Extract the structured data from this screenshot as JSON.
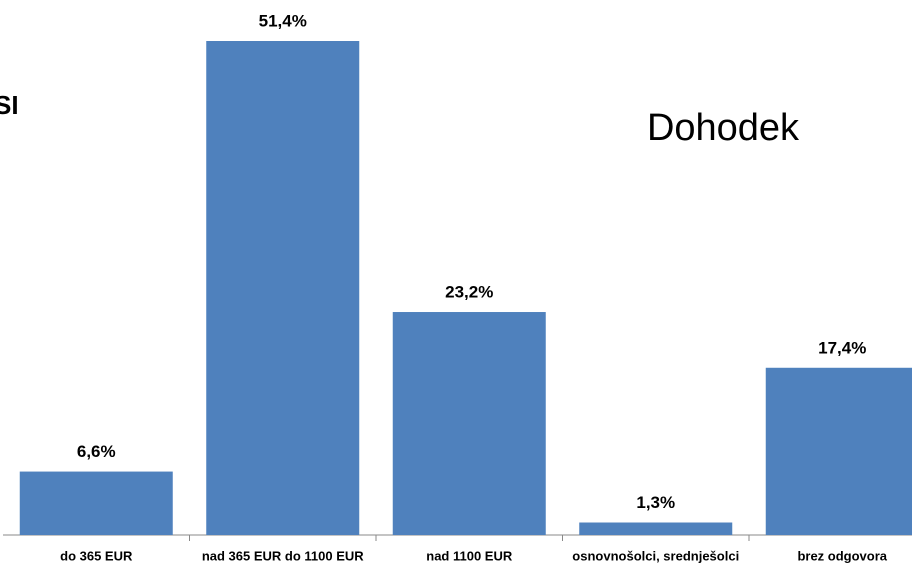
{
  "chart_data": {
    "type": "bar",
    "title": "Dohodek",
    "annotation": "SI",
    "categories": [
      "do 365 EUR",
      "nad 365 EUR do 1100 EUR",
      "nad 1100 EUR",
      "osnovnošolci, srednješolci",
      "brez odgovora"
    ],
    "values": [
      6.6,
      51.4,
      23.2,
      1.3,
      17.4
    ],
    "value_labels": [
      "6,6%",
      "51,4%",
      "23,2%",
      "1,3%",
      "17,4%"
    ],
    "color": "#4f81bd"
  }
}
